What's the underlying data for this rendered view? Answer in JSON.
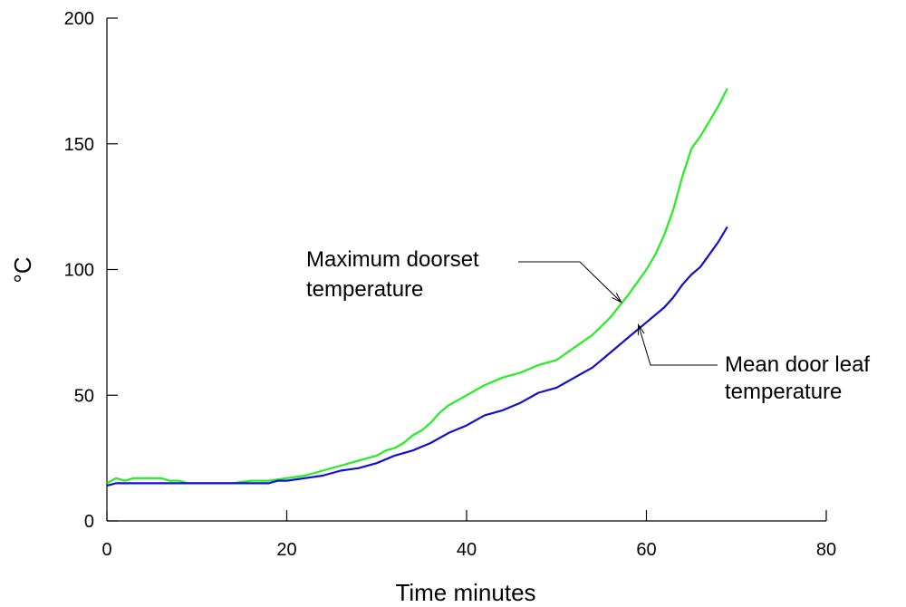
{
  "chart_data": {
    "type": "line",
    "title": "",
    "xlabel": "Time minutes",
    "ylabel": "°C",
    "xlim": [
      0,
      80
    ],
    "ylim": [
      0,
      200
    ],
    "xticks": [
      0,
      20,
      40,
      60,
      80
    ],
    "yticks": [
      0,
      50,
      100,
      150,
      200
    ],
    "grid": false,
    "series": [
      {
        "color": "#22ee22",
        "x": [
          0,
          1,
          2,
          3,
          4,
          5,
          6,
          7,
          8,
          9,
          10,
          12,
          14,
          16,
          18,
          20,
          22,
          24,
          26,
          28,
          30,
          31,
          32,
          33,
          34,
          35,
          36,
          37,
          38,
          40,
          42,
          44,
          46,
          48,
          50,
          52,
          54,
          56,
          58,
          60,
          61,
          62,
          63,
          64,
          65,
          66,
          67,
          68,
          69
        ],
        "y": [
          15,
          17,
          16,
          17,
          17,
          17,
          17,
          16,
          16,
          15,
          15,
          15,
          15,
          16,
          16,
          17,
          18,
          20,
          22,
          24,
          26,
          28,
          29,
          31,
          34,
          36,
          39,
          43,
          46,
          50,
          54,
          57,
          59,
          62,
          64,
          69,
          74,
          81,
          90,
          100,
          106,
          114,
          124,
          137,
          148,
          153,
          159,
          165,
          172
        ]
      },
      {
        "color": "#1010cc",
        "x": [
          0,
          1,
          2,
          4,
          6,
          8,
          10,
          12,
          14,
          16,
          18,
          19,
          20,
          22,
          24,
          26,
          28,
          30,
          32,
          34,
          36,
          38,
          40,
          42,
          44,
          46,
          48,
          50,
          52,
          54,
          56,
          58,
          60,
          62,
          63,
          64,
          65,
          66,
          67,
          68,
          69
        ],
        "y": [
          14,
          15,
          15,
          15,
          15,
          15,
          15,
          15,
          15,
          15,
          15,
          16,
          16,
          17,
          18,
          20,
          21,
          23,
          26,
          28,
          31,
          35,
          38,
          42,
          44,
          47,
          51,
          53,
          57,
          61,
          67,
          73,
          79,
          85,
          89,
          94,
          98,
          101,
          106,
          111,
          117
        ]
      }
    ],
    "annotations": [
      {
        "lines": [
          "Maximum doorset",
          "temperature"
        ],
        "x": 57.2,
        "y": 87
      },
      {
        "lines": [
          "Mean door leaf",
          "temperature"
        ],
        "x": 59.1,
        "y": 78
      }
    ]
  }
}
